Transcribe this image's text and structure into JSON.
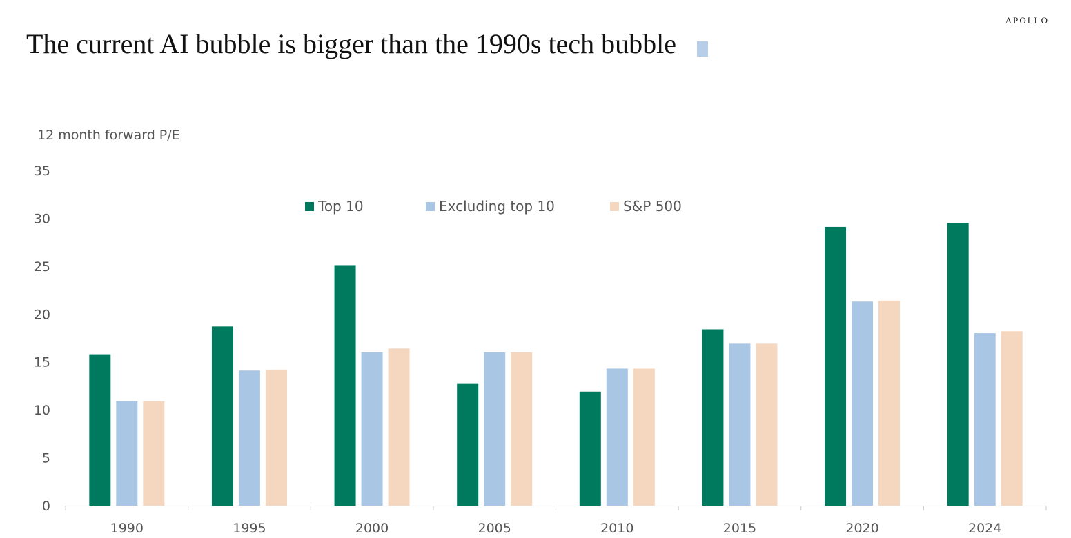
{
  "brand": "APOLLO",
  "title": "The current AI bubble is bigger than the 1990s tech bubble",
  "chart_data": {
    "type": "bar",
    "title": "The current AI bubble is bigger than the 1990s tech bubble",
    "ylabel": "12 month forward P/E",
    "xlabel": "",
    "ylim": [
      0,
      35
    ],
    "yticks": [
      0,
      5,
      10,
      15,
      20,
      25,
      30,
      35
    ],
    "grid": false,
    "legend_position": "top-center",
    "categories": [
      "1990",
      "1995",
      "2000",
      "2005",
      "2010",
      "2015",
      "2020",
      "2024"
    ],
    "series": [
      {
        "name": "Top 10",
        "color": "#007a5e",
        "values": [
          15.8,
          18.7,
          25.1,
          12.7,
          11.9,
          18.4,
          29.1,
          29.5
        ]
      },
      {
        "name": "Excluding top 10",
        "color": "#a9c6e4",
        "values": [
          10.9,
          14.1,
          16.0,
          16.0,
          14.3,
          16.9,
          21.3,
          18.0
        ]
      },
      {
        "name": "S&P 500",
        "color": "#f5d6bf",
        "values": [
          10.9,
          14.2,
          16.4,
          16.0,
          14.3,
          16.9,
          21.4,
          18.2
        ]
      }
    ]
  }
}
